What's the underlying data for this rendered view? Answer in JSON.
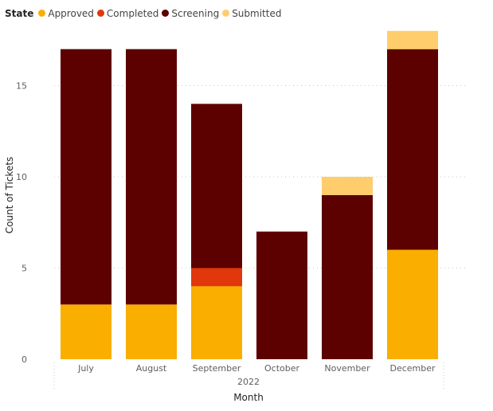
{
  "chart_data": {
    "type": "bar",
    "stacked": true,
    "legend_title": "State",
    "legend_position": "top-left",
    "categories": [
      "July",
      "August",
      "September",
      "October",
      "November",
      "December"
    ],
    "x_group_label": "2022",
    "xlabel": "Month",
    "ylabel": "Count of Tickets",
    "ylim": [
      0,
      18
    ],
    "yticks": [
      0,
      5,
      10,
      15
    ],
    "grid": true,
    "series": [
      {
        "name": "Approved",
        "color": "#F9AE00",
        "values": [
          3,
          3,
          4,
          0,
          0,
          6
        ]
      },
      {
        "name": "Completed",
        "color": "#E0380A",
        "values": [
          0,
          0,
          1,
          0,
          0,
          0
        ]
      },
      {
        "name": "Screening",
        "color": "#5C0000",
        "values": [
          14,
          14,
          9,
          7,
          9,
          11
        ]
      },
      {
        "name": "Submitted",
        "color": "#FFCD6B",
        "values": [
          0,
          0,
          0,
          0,
          1,
          1
        ]
      }
    ]
  }
}
